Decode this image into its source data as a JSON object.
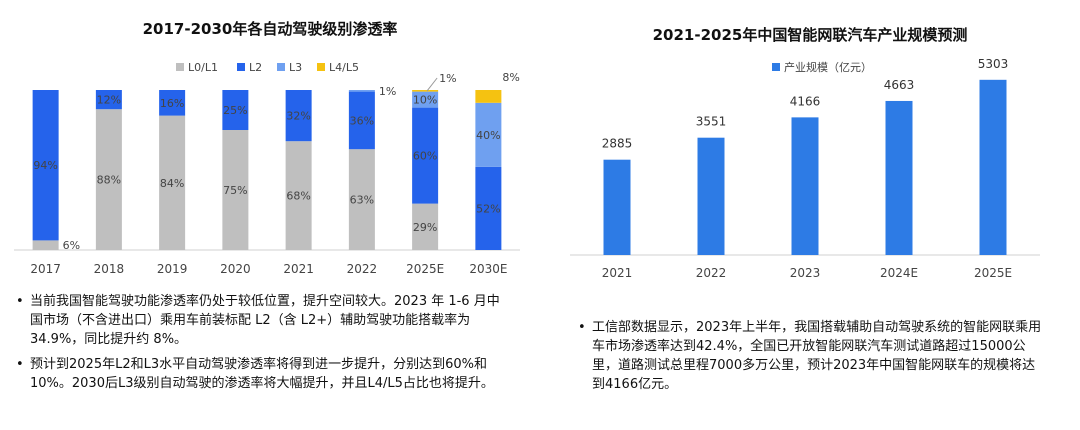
{
  "left": {
    "title": "2017-2030年各自动驾驶级别渗透率",
    "bullets": [
      "当前我国智能驾驶功能渗透率仍处于较低位置，提升空间较大。2023 年 1-6 月中国市场（不含进出口）乘用车前装标配 L2（含 L2+）辅助驾驶功能搭载率为 34.9%，同比提升约 8%。",
      "预计到2025年L2和L3水平自动驾驶渗透率将得到进一步提升，分别达到60%和10%。2030后L3级别自动驾驶的渗透率将大幅提升，并且L4/L5占比也将提升。"
    ]
  },
  "right": {
    "title": "2021-2025年中国智能网联汽车产业规模预测",
    "bullets": [
      "工信部数据显示，2023年上半年，我国搭载辅助自动驾驶系统的智能网联乘用车市场渗透率达到42.4%，全国已开放智能网联汽车测试道路超过15000公里，道路测试总里程7000多万公里，预计2023年中国智能网联车的规模将达到4166亿元。"
    ]
  },
  "bullet_glyph": "•",
  "chart_data": [
    {
      "type": "bar",
      "stacked": true,
      "title": "2017-2030年各自动驾驶级别渗透率",
      "categories": [
        "2017",
        "2018",
        "2019",
        "2020",
        "2021",
        "2022",
        "2025E",
        "2030E"
      ],
      "series": [
        {
          "name": "L0/L1",
          "color": "#bfbfbf",
          "values": [
            6,
            88,
            84,
            75,
            68,
            63,
            29,
            0
          ]
        },
        {
          "name": "L2",
          "color": "#2563eb",
          "values": [
            94,
            12,
            16,
            25,
            32,
            36,
            60,
            52
          ]
        },
        {
          "name": "L3",
          "color": "#6fa0f0",
          "values": [
            0,
            0,
            0,
            0,
            0,
            1,
            10,
            40
          ]
        },
        {
          "name": "L4/L5",
          "color": "#f5c211",
          "values": [
            0,
            0,
            0,
            0,
            0,
            0,
            1,
            8
          ]
        }
      ],
      "data_labels": [
        [
          "6%",
          "88%",
          "84%",
          "75%",
          "68%",
          "63%",
          "29%",
          ""
        ],
        [
          "94%",
          "12%",
          "16%",
          "25%",
          "32%",
          "36%",
          "60%",
          "52%"
        ],
        [
          "",
          "",
          "",
          "",
          "",
          "1%",
          "10%",
          "40%"
        ],
        [
          "",
          "",
          "",
          "",
          "",
          "",
          "1%",
          "8%"
        ]
      ],
      "ylim": [
        0,
        100
      ],
      "legend": "top",
      "grid": false
    },
    {
      "type": "bar",
      "title": "2021-2025年中国智能网联汽车产业规模预测",
      "categories": [
        "2021",
        "2022",
        "2023",
        "2024E",
        "2025E"
      ],
      "series": [
        {
          "name": "产业规模（亿元）",
          "color": "#2d7be5",
          "values": [
            2885,
            3551,
            4166,
            4663,
            5303
          ]
        }
      ],
      "ylim": [
        0,
        5600
      ],
      "legend": "top",
      "grid": false
    }
  ]
}
